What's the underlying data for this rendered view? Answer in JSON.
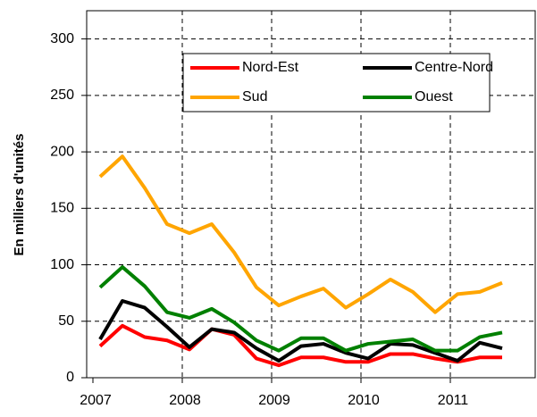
{
  "chart_data": {
    "type": "line",
    "ylabel": "En milliers d'unités",
    "categories": [
      "2007",
      null,
      null,
      null,
      "2008",
      null,
      null,
      null,
      "2009",
      null,
      null,
      null,
      "2010",
      null,
      null,
      null,
      "2011",
      null,
      null
    ],
    "series": [
      {
        "name": "Nord-Est",
        "color": "#ff0000",
        "values": [
          28,
          46,
          36,
          33,
          25,
          43,
          38,
          17,
          11,
          18,
          18,
          14,
          14,
          21,
          21,
          17,
          14,
          18,
          18
        ]
      },
      {
        "name": "Centre-Nord",
        "color": "#000000",
        "values": [
          34,
          68,
          62,
          45,
          27,
          43,
          40,
          26,
          15,
          28,
          30,
          22,
          17,
          30,
          29,
          22,
          15,
          31,
          26
        ]
      },
      {
        "name": "Sud",
        "color": "#ffa500",
        "values": [
          178,
          196,
          168,
          136,
          128,
          136,
          111,
          80,
          64,
          72,
          79,
          62,
          74,
          87,
          76,
          58,
          74,
          76,
          84
        ]
      },
      {
        "name": "Ouest",
        "color": "#008000",
        "values": [
          80,
          98,
          81,
          58,
          53,
          61,
          49,
          33,
          24,
          35,
          35,
          24,
          30,
          32,
          34,
          24,
          24,
          36,
          40
        ]
      }
    ],
    "ylim": [
      0,
      325
    ],
    "yticks": [
      0,
      50,
      100,
      150,
      200,
      250,
      300
    ],
    "grid": true
  }
}
